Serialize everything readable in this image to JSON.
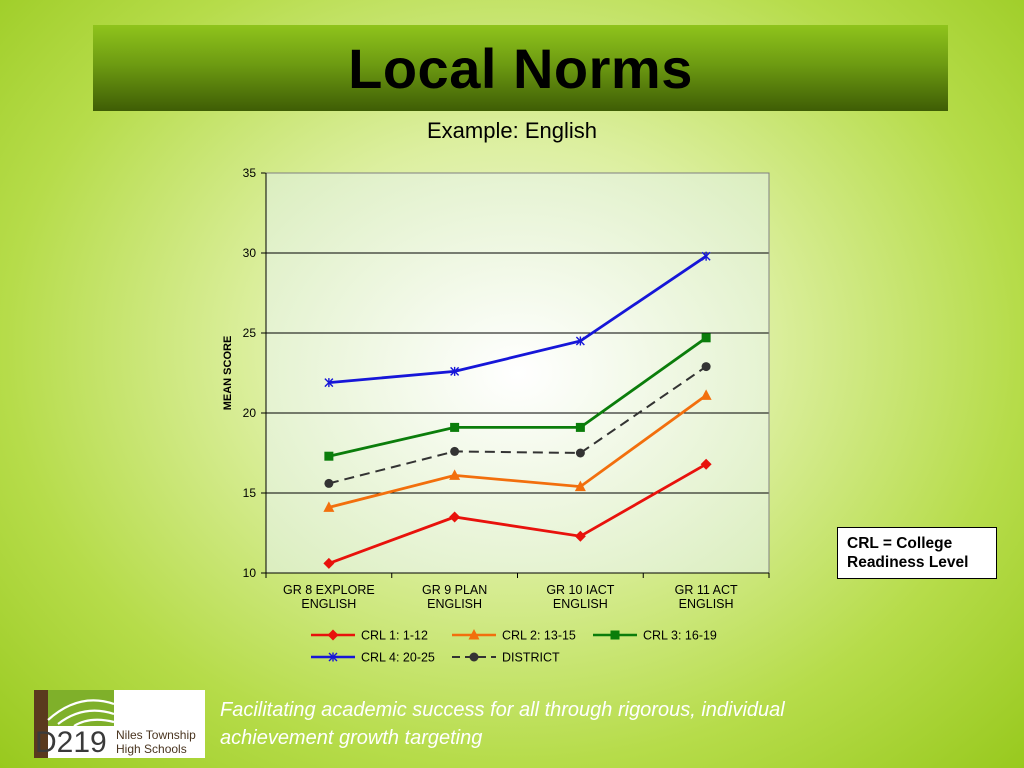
{
  "title": "Local Norms",
  "subtitle": "Example: English",
  "note_box": {
    "line1": "CRL = College",
    "line2": "Readiness Level"
  },
  "footer": {
    "line1": "Facilitating academic success for all through rigorous, individual",
    "line2": "achievement growth targeting"
  },
  "logo": {
    "mark": "D219",
    "line1": "Niles Township",
    "line2": "High Schools"
  },
  "chart_data": {
    "type": "line",
    "title": "",
    "xlabel": "",
    "ylabel": "MEAN SCORE",
    "ylim": [
      10,
      35
    ],
    "yticks": [
      10,
      15,
      20,
      25,
      30,
      35
    ],
    "grid": true,
    "legend_position": "bottom",
    "categories": [
      [
        "GR 8 EXPLORE",
        "ENGLISH"
      ],
      [
        "GR 9 PLAN",
        "ENGLISH"
      ],
      [
        "GR 10 IACT",
        "ENGLISH"
      ],
      [
        "GR 11 ACT",
        "ENGLISH"
      ]
    ],
    "series": [
      {
        "name": "CRL 1: 1-12",
        "values": [
          10.6,
          13.5,
          12.3,
          16.8
        ],
        "color": "#e8120c",
        "marker": "diamond",
        "dash": false
      },
      {
        "name": "CRL 2: 13-15",
        "values": [
          14.1,
          16.1,
          15.4,
          21.1
        ],
        "color": "#f26f0d",
        "marker": "triangle",
        "dash": false
      },
      {
        "name": "CRL 3: 16-19",
        "values": [
          17.3,
          19.1,
          19.1,
          24.7
        ],
        "color": "#0b7d0b",
        "marker": "square",
        "dash": false
      },
      {
        "name": "CRL 4: 20-25",
        "values": [
          21.9,
          22.6,
          24.5,
          29.8
        ],
        "color": "#1616d8",
        "marker": "star",
        "dash": false
      },
      {
        "name": "DISTRICT",
        "values": [
          15.6,
          17.6,
          17.5,
          22.9
        ],
        "color": "#333333",
        "marker": "circle",
        "dash": true
      }
    ]
  }
}
